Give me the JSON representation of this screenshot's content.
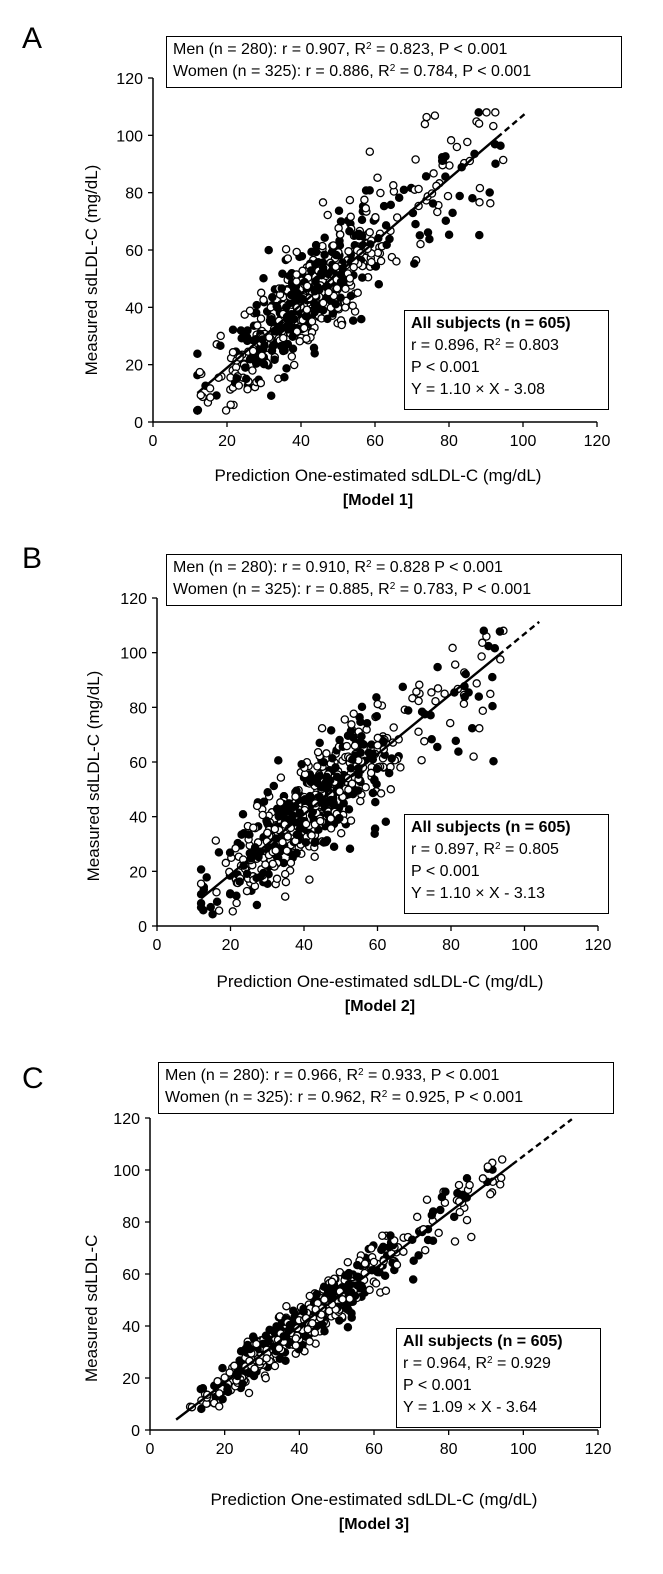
{
  "chart_data": [
    {
      "type": "scatter",
      "panel": "A",
      "model_label": "[Model 1]",
      "xlabel": "Prediction One-estimated sdLDL-C (mg/dL)",
      "ylabel": "Measured sdLDL-C (mg/dL)",
      "xlim": [
        0,
        120
      ],
      "ylim": [
        0,
        120
      ],
      "xticks": [
        "0",
        "20",
        "40",
        "60",
        "80",
        "100",
        "120"
      ],
      "yticks": [
        "0",
        "20",
        "40",
        "60",
        "80",
        "100",
        "120"
      ],
      "men": {
        "prefix": "Men (n = 280): r = 0.907, R",
        "suffix": " = 0.823, P < 0.001"
      },
      "women": {
        "prefix": "Women (n = 325): r = 0.886, R",
        "suffix": " = 0.784, P < 0.001"
      },
      "all": {
        "title": "All subjects (n = 605)",
        "r_prefix": "r = 0.896, R",
        "r_suffix": " = 0.803",
        "p": "P < 0.001",
        "eq": "Y = 1.10 × X  - 3.08"
      },
      "fit": {
        "slope": 1.1,
        "intercept": -3.08,
        "solid_x": [
          12,
          93
        ],
        "dashed_x": [
          93,
          101
        ]
      },
      "spread": 8.5,
      "seed": 11
    },
    {
      "type": "scatter",
      "panel": "B",
      "model_label": "[Model 2]",
      "xlabel": "Prediction One-estimated sdLDL-C (mg/dL)",
      "ylabel": "Measured sdLDL-C (mg/dL)",
      "xlim": [
        0,
        120
      ],
      "ylim": [
        0,
        120
      ],
      "xticks": [
        "0",
        "20",
        "40",
        "60",
        "80",
        "100",
        "120"
      ],
      "yticks": [
        "0",
        "20",
        "40",
        "60",
        "80",
        "100",
        "120"
      ],
      "men": {
        "prefix": "Men (n = 280): r = 0.910, R",
        "suffix": " = 0.828 P < 0.001"
      },
      "women": {
        "prefix": "Women (n = 325): r = 0.885, R",
        "suffix": " = 0.783, P < 0.001"
      },
      "all": {
        "title": "All subjects (n = 605)",
        "r_prefix": "r = 0.897, R",
        "r_suffix": " = 0.805",
        "p": "P < 0.001",
        "eq": "Y = 1.10 × X  - 3.13"
      },
      "fit": {
        "slope": 1.1,
        "intercept": -3.13,
        "solid_x": [
          12,
          93
        ],
        "dashed_x": [
          93,
          104
        ]
      },
      "spread": 8.3,
      "seed": 23
    },
    {
      "type": "scatter",
      "panel": "C",
      "model_label": "[Model 3]",
      "xlabel": "Prediction One-estimated sdLDL-C (mg/dL)",
      "ylabel": "Measured sdLDL-C",
      "xlim": [
        0,
        120
      ],
      "ylim": [
        0,
        120
      ],
      "xticks": [
        "0",
        "20",
        "40",
        "60",
        "80",
        "100",
        "120"
      ],
      "yticks": [
        "0",
        "20",
        "40",
        "60",
        "80",
        "100",
        "120"
      ],
      "men": {
        "prefix": "Men (n = 280): r = 0.966, R",
        "suffix": " = 0.933, P < 0.001"
      },
      "women": {
        "prefix": "Women (n = 325): r = 0.962, R",
        "suffix": " = 0.925, P < 0.001"
      },
      "all": {
        "title": "All subjects (n = 605)",
        "r_prefix": "r = 0.964, R",
        "r_suffix": " = 0.929",
        "p": "P < 0.001",
        "eq": "Y = 1.09 × X  - 3.64"
      },
      "fit": {
        "slope": 1.09,
        "intercept": -3.64,
        "solid_x": [
          7,
          97
        ],
        "dashed_x": [
          97,
          113
        ]
      },
      "spread": 4.2,
      "seed": 37
    }
  ],
  "superscript": "2",
  "points_per_panel": 605
}
